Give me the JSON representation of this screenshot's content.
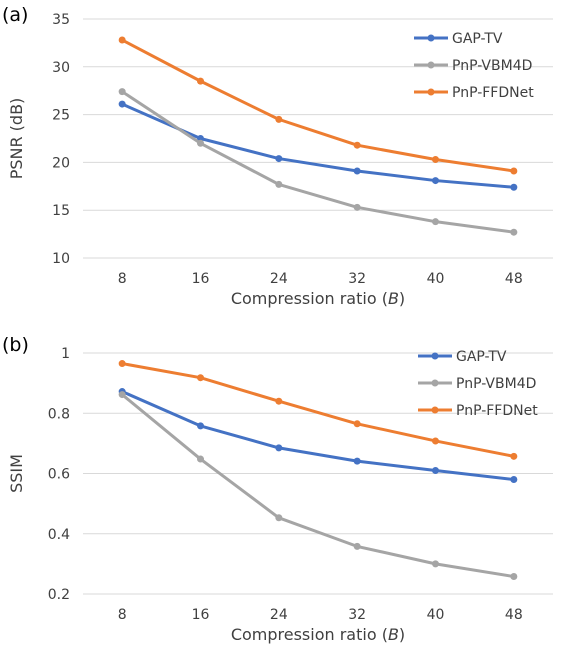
{
  "chart_data": [
    {
      "type": "line",
      "panel_label": "(a)",
      "categories": [
        "8",
        "16",
        "24",
        "32",
        "40",
        "48"
      ],
      "ylabel": "PSNR (dB)",
      "xlabel": "Compression ratio (B)",
      "xlabel_prefix": "Compression ratio (",
      "xlabel_var": "B",
      "xlabel_suffix": ")",
      "ylim": [
        10,
        35
      ],
      "yticks": [
        "10",
        "15",
        "20",
        "25",
        "30",
        "35"
      ],
      "grid": true,
      "legend_position": "top-right",
      "series": [
        {
          "name": "GAP-TV",
          "color": "#4472C4",
          "values": [
            26.1,
            22.5,
            20.4,
            19.1,
            18.1,
            17.4
          ]
        },
        {
          "name": "PnP-VBM4D",
          "color": "#A5A5A5",
          "values": [
            27.4,
            22.0,
            17.7,
            15.3,
            13.8,
            12.7
          ]
        },
        {
          "name": "PnP-FFDNet",
          "color": "#ED7D31",
          "values": [
            32.8,
            28.5,
            24.5,
            21.8,
            20.3,
            19.1
          ]
        }
      ]
    },
    {
      "type": "line",
      "panel_label": "(b)",
      "categories": [
        "8",
        "16",
        "24",
        "32",
        "40",
        "48"
      ],
      "ylabel": "SSIM",
      "xlabel": "Compression ratio (B)",
      "xlabel_prefix": "Compression ratio (",
      "xlabel_var": "B",
      "xlabel_suffix": ")",
      "ylim": [
        0.2,
        1.0
      ],
      "yticks": [
        "0.2",
        "0.4",
        "0.6",
        "0.8",
        "1"
      ],
      "grid": true,
      "legend_position": "top-right",
      "series": [
        {
          "name": "GAP-TV",
          "color": "#4472C4",
          "values": [
            0.872,
            0.758,
            0.685,
            0.641,
            0.61,
            0.58
          ]
        },
        {
          "name": "PnP-VBM4D",
          "color": "#A5A5A5",
          "values": [
            0.862,
            0.648,
            0.453,
            0.358,
            0.3,
            0.258
          ]
        },
        {
          "name": "PnP-FFDNet",
          "color": "#ED7D31",
          "values": [
            0.965,
            0.918,
            0.84,
            0.765,
            0.708,
            0.657
          ]
        }
      ]
    }
  ]
}
